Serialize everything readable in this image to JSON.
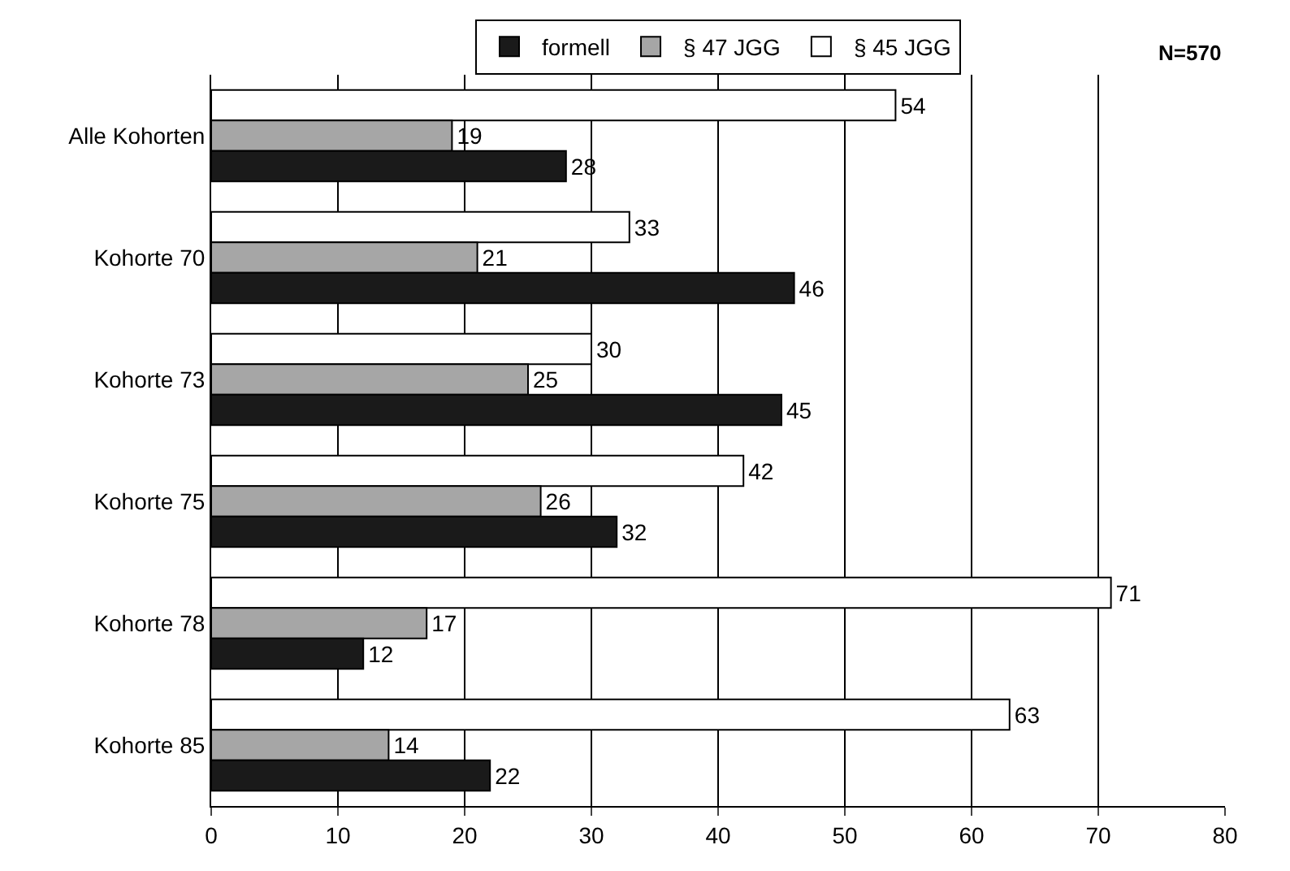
{
  "chart_data": {
    "type": "bar",
    "orientation": "horizontal",
    "categories": [
      "Alle Kohorten",
      "Kohorte 70",
      "Kohorte 73",
      "Kohorte 75",
      "Kohorte 78",
      "Kohorte 85"
    ],
    "series": [
      {
        "name": "formell",
        "color": "#1a1a1a",
        "values": [
          28,
          46,
          45,
          32,
          12,
          22
        ]
      },
      {
        "name": "§ 47 JGG",
        "color": "#a6a6a6",
        "values": [
          19,
          21,
          25,
          26,
          17,
          14
        ]
      },
      {
        "name": "§ 45 JGG",
        "color": "#ffffff",
        "values": [
          54,
          33,
          30,
          42,
          71,
          63
        ]
      }
    ],
    "xlim": [
      0,
      80
    ],
    "xticks": [
      0,
      10,
      20,
      30,
      40,
      50,
      60,
      70,
      80
    ],
    "grid": "x",
    "legend": "top",
    "data_labels": true,
    "annotations": [
      "N=570"
    ]
  }
}
